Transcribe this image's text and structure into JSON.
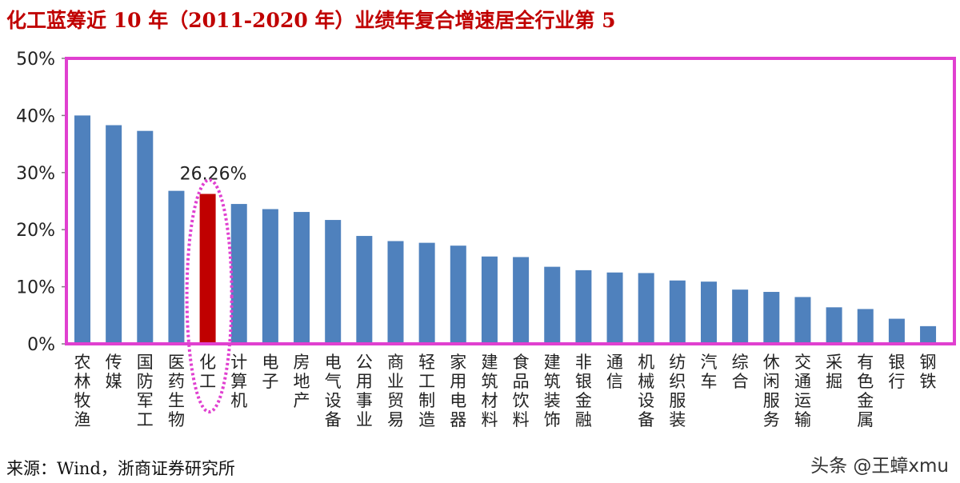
{
  "chart_data": {
    "type": "bar",
    "title": "化工蓝筹近 10 年（2011-2020 年）业绩年复合增速居全行业第 5",
    "categories": [
      "农林牧渔",
      "传媒",
      "国防军工",
      "医药生物",
      "化工",
      "计算机",
      "电子",
      "房地产",
      "电气设备",
      "公用事业",
      "商业贸易",
      "轻工制造",
      "家用电器",
      "建筑材料",
      "食品饮料",
      "建筑装饰",
      "非银金融",
      "通信",
      "机械设备",
      "纺织服装",
      "汽车",
      "综合",
      "休闲服务",
      "交通运输",
      "采掘",
      "有色金属",
      "银行",
      "钢铁"
    ],
    "values": [
      40.0,
      38.3,
      37.3,
      26.8,
      26.26,
      24.5,
      23.6,
      23.1,
      21.7,
      18.9,
      18.0,
      17.7,
      17.2,
      15.3,
      15.2,
      13.5,
      12.9,
      12.5,
      12.4,
      11.1,
      10.9,
      9.5,
      9.1,
      8.2,
      6.4,
      6.1,
      4.4,
      3.1
    ],
    "highlight": {
      "category": "化工",
      "label": "26.26%",
      "color": "#c00000"
    },
    "bar_color": "#4f81bd",
    "frame_color": "#e040d0",
    "ylim": [
      0,
      50
    ],
    "yticks": [
      "0%",
      "10%",
      "20%",
      "30%",
      "40%",
      "50%"
    ],
    "grid": false,
    "source": "来源：Wind，浙商证券研究所",
    "watermark": "头条 @王蟑xmu"
  }
}
